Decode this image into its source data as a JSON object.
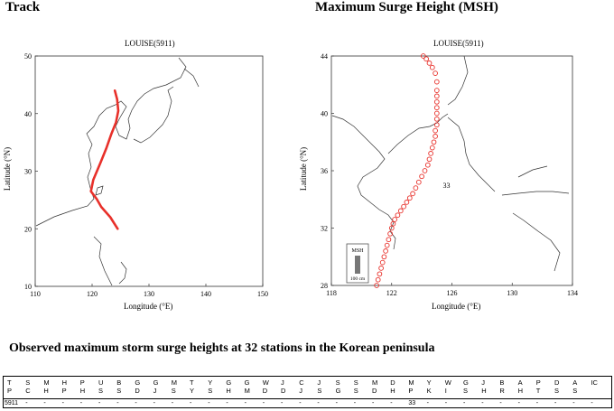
{
  "headers": {
    "track": "Track",
    "msh": "Maximum Surge Height (MSH)"
  },
  "chart_data": [
    {
      "type": "line",
      "title": "LOUISE(5911)",
      "xlabel": "Longitude (°E)",
      "ylabel": "Latitude (°N)",
      "xlim": [
        110,
        150
      ],
      "ylim": [
        10,
        50
      ],
      "xticks": [
        "110",
        "120",
        "130",
        "140",
        "150"
      ],
      "yticks": [
        "10",
        "20",
        "30",
        "40",
        "50"
      ],
      "grid": false,
      "series": [
        {
          "color": "#e8302a",
          "x": [
            124.5,
            123.2,
            121.6,
            120.8,
            119.8,
            120.2,
            121.5,
            122.5,
            123.4,
            124.2,
            124.6,
            124.4,
            124.0
          ],
          "y": [
            20.0,
            22.0,
            23.8,
            25.2,
            26.5,
            28.5,
            31.5,
            34.0,
            36.5,
            38.5,
            40.5,
            42.5,
            44.0
          ]
        }
      ]
    },
    {
      "type": "scatter",
      "title": "LOUISE(5911)",
      "xlabel": "Longitude (°E)",
      "ylabel": "Latitude (°N)",
      "xlim": [
        118,
        134
      ],
      "ylim": [
        28,
        44
      ],
      "xticks": [
        "118",
        "122",
        "126",
        "130",
        "134"
      ],
      "yticks": [
        "28",
        "32",
        "36",
        "40",
        "44"
      ],
      "grid": false,
      "annotation": "33",
      "annotation_position": [
        125.4,
        34.8
      ],
      "legend_title": "MSH",
      "legend_scale": "100 cm",
      "series": [
        {
          "color": "#e8302a",
          "x": [
            121.0,
            121.1,
            121.2,
            121.3,
            121.4,
            121.5,
            121.6,
            121.7,
            121.8,
            121.9,
            122.0,
            122.1,
            122.2,
            122.4,
            122.6,
            122.8,
            123.0,
            123.2,
            123.4,
            123.6,
            123.8,
            124.0,
            124.2,
            124.4,
            124.5,
            124.6,
            124.7,
            124.8,
            124.9,
            124.9,
            125.0,
            125.0,
            125.0,
            125.0,
            125.0,
            125.0,
            125.0,
            125.0,
            124.9,
            124.7,
            124.5,
            124.3,
            124.1
          ],
          "y": [
            28.0,
            28.4,
            28.8,
            29.2,
            29.6,
            30.0,
            30.4,
            30.8,
            31.2,
            31.6,
            32.0,
            32.3,
            32.6,
            32.9,
            33.2,
            33.5,
            33.8,
            34.1,
            34.4,
            34.8,
            35.2,
            35.6,
            36.0,
            36.4,
            36.8,
            37.2,
            37.6,
            38.0,
            38.4,
            38.8,
            39.2,
            39.6,
            40.0,
            40.4,
            40.8,
            41.2,
            41.6,
            42.2,
            42.8,
            43.2,
            43.5,
            43.8,
            44.0
          ]
        }
      ]
    }
  ],
  "table": {
    "title": "Observed maximum storm surge heights at 32 stations in the Korean peninsula",
    "columns": [
      [
        "T",
        "P"
      ],
      [
        "S",
        "C"
      ],
      [
        "M",
        "H"
      ],
      [
        "H",
        "P"
      ],
      [
        "P",
        "H"
      ],
      [
        "U",
        "S"
      ],
      [
        "B",
        "S"
      ],
      [
        "G",
        "D"
      ],
      [
        "G",
        "J"
      ],
      [
        "M",
        "S"
      ],
      [
        "T",
        "Y"
      ],
      [
        "Y",
        "S"
      ],
      [
        "G",
        "H"
      ],
      [
        "G",
        "M"
      ],
      [
        "W",
        "D"
      ],
      [
        "J",
        "D"
      ],
      [
        "C",
        "J"
      ],
      [
        "J",
        "S"
      ],
      [
        "S",
        "G"
      ],
      [
        "S",
        "S"
      ],
      [
        "M",
        "D"
      ],
      [
        "D",
        "H"
      ],
      [
        "M",
        "P"
      ],
      [
        "Y",
        "K"
      ],
      [
        "W",
        "I"
      ],
      [
        "G",
        "S"
      ],
      [
        "J",
        "H"
      ],
      [
        "B",
        "R"
      ],
      [
        "A",
        "H"
      ],
      [
        "P",
        "T"
      ],
      [
        "D",
        "S"
      ],
      [
        "A",
        "S"
      ],
      [
        "IC",
        ""
      ]
    ],
    "row": [
      "5911",
      "-",
      "-",
      "-",
      "-",
      "-",
      "-",
      "-",
      "-",
      "-",
      "-",
      "-",
      "-",
      "-",
      "-",
      "-",
      "-",
      "-",
      "-",
      "-",
      "-",
      "-",
      "33",
      "-",
      "-",
      "-",
      "-",
      "-",
      "-",
      "-",
      "-",
      "-",
      "-"
    ]
  }
}
